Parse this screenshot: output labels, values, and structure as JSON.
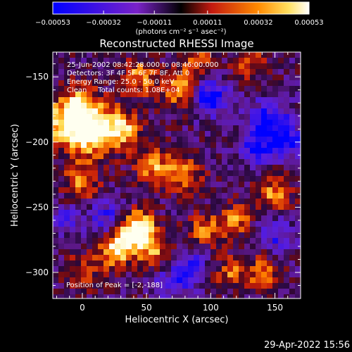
{
  "chart_data": {
    "type": "heatmap",
    "title": "Reconstructed RHESSI Image",
    "xlabel": "Heliocentric X (arcsec)",
    "ylabel": "Heliocentric Y (arcsec)",
    "xlim": [
      -23,
      170
    ],
    "ylim": [
      -320,
      -131
    ],
    "x_ticks": [
      0,
      50,
      100,
      150
    ],
    "y_ticks": [
      -150,
      -200,
      -250,
      -300
    ],
    "x_tick_labels": [
      "0",
      "50",
      "100",
      "150"
    ],
    "y_tick_labels": [
      "−150",
      "−200",
      "−250",
      "−300"
    ],
    "colorbar": {
      "range": [
        -0.00053,
        0.00053
      ],
      "tick_values": [
        -0.00053,
        -0.00032,
        -0.00011,
        0.00011,
        0.00032,
        0.00053
      ],
      "tick_labels": [
        "−0.00053",
        "−0.00032",
        "−0.00011",
        "0.00011",
        "0.00032",
        "0.00053"
      ],
      "unit_label": "(photons cm⁻² s⁻¹ asec⁻²)"
    },
    "annotations": [
      "25-Jun-2002 08:42:28.000 to 08:46:00.000",
      "Detectors: 3F 4F 5F 6F 7F 8F, Att 0",
      "Energy Range: 25.0 - 50.0 keV",
      "Clean     Total counts: 1.08E+04"
    ],
    "peak_label": "Position of Peak = [-2,-188]",
    "peak_position": [
      -2,
      -188
    ],
    "bright_regions": [
      {
        "x": -12,
        "y": -185,
        "level": 0.95,
        "r": 14
      },
      {
        "x": 8,
        "y": -192,
        "level": 1.0,
        "r": 13
      },
      {
        "x": 30,
        "y": -190,
        "level": 0.85,
        "r": 11
      },
      {
        "x": 0,
        "y": -170,
        "level": 0.6,
        "r": 10
      },
      {
        "x": 45,
        "y": -150,
        "level": 0.7,
        "r": 10
      },
      {
        "x": 75,
        "y": -160,
        "level": 0.75,
        "r": 10
      },
      {
        "x": 90,
        "y": -140,
        "level": 0.6,
        "r": 9
      },
      {
        "x": 130,
        "y": -140,
        "level": 0.55,
        "r": 9
      },
      {
        "x": 0,
        "y": -230,
        "level": 0.7,
        "r": 10
      },
      {
        "x": 55,
        "y": -218,
        "level": 0.75,
        "r": 10
      },
      {
        "x": 80,
        "y": -225,
        "level": 0.65,
        "r": 10
      },
      {
        "x": 150,
        "y": -240,
        "level": 0.75,
        "r": 10
      },
      {
        "x": 35,
        "y": -272,
        "level": 0.9,
        "r": 10
      },
      {
        "x": 25,
        "y": -285,
        "level": 0.8,
        "r": 9
      },
      {
        "x": 55,
        "y": -280,
        "level": 0.85,
        "r": 9
      },
      {
        "x": 45,
        "y": -262,
        "level": 0.8,
        "r": 8
      },
      {
        "x": 95,
        "y": -268,
        "level": 0.7,
        "r": 9
      },
      {
        "x": 120,
        "y": -260,
        "level": 0.65,
        "r": 9
      },
      {
        "x": 140,
        "y": -300,
        "level": 0.6,
        "r": 10
      },
      {
        "x": 0,
        "y": -300,
        "level": 0.5,
        "r": 10
      },
      {
        "x": 115,
        "y": -300,
        "level": 0.55,
        "r": 9
      }
    ],
    "dark_regions": [
      {
        "x": 100,
        "y": -165,
        "level": -0.9,
        "r": 10
      },
      {
        "x": 145,
        "y": -185,
        "level": -0.8,
        "r": 12
      },
      {
        "x": 160,
        "y": -200,
        "level": -0.7,
        "r": 9
      },
      {
        "x": 135,
        "y": -205,
        "level": -0.6,
        "r": 9
      },
      {
        "x": 20,
        "y": -258,
        "level": -0.6,
        "r": 10
      },
      {
        "x": 150,
        "y": -270,
        "level": -0.6,
        "r": 10
      },
      {
        "x": 70,
        "y": -310,
        "level": -0.55,
        "r": 9
      },
      {
        "x": -15,
        "y": -260,
        "level": -0.5,
        "r": 8
      },
      {
        "x": 85,
        "y": -295,
        "level": -0.6,
        "r": 9
      }
    ]
  },
  "footer": {
    "timestamp": "29-Apr-2022 15:56"
  }
}
